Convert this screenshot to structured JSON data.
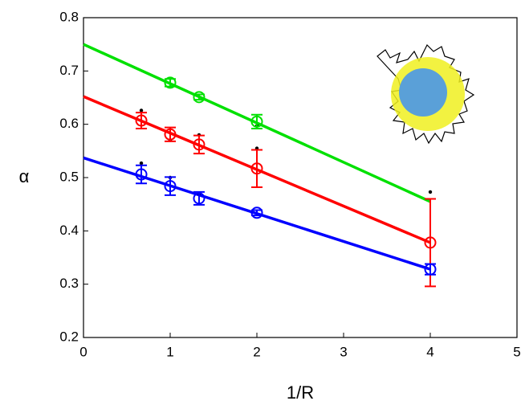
{
  "chart_data": {
    "type": "scatter",
    "xlabel": "1/R",
    "ylabel": "α",
    "xlim": [
      0,
      5
    ],
    "ylim": [
      0.2,
      0.8
    ],
    "xticks": [
      0,
      1,
      2,
      3,
      4,
      5
    ],
    "yticks": [
      0.2,
      0.3,
      0.4,
      0.5,
      0.6,
      0.7,
      0.8
    ],
    "series": [
      {
        "color": "#00e000",
        "x": [
          1,
          1.333,
          2
        ],
        "values": [
          0.678,
          0.651,
          0.605
        ],
        "errors": [
          0.007,
          0.005,
          0.013
        ]
      },
      {
        "color": "#ff0000",
        "x": [
          0.667,
          1,
          1.333,
          2,
          4
        ],
        "values": [
          0.607,
          0.581,
          0.562,
          0.517,
          0.378
        ],
        "errors": [
          0.015,
          0.013,
          0.017,
          0.035,
          0.082
        ]
      },
      {
        "color": "#0000ff",
        "x": [
          0.667,
          1,
          1.333,
          2,
          4
        ],
        "values": [
          0.506,
          0.484,
          0.461,
          0.434,
          0.328
        ],
        "errors": [
          0.017,
          0.017,
          0.012,
          0.005,
          0.01
        ]
      }
    ],
    "fits": [
      {
        "color": "#00e000",
        "x": [
          0,
          4
        ],
        "values": [
          0.75,
          0.455
        ]
      },
      {
        "color": "#ff0000",
        "x": [
          0,
          4
        ],
        "values": [
          0.652,
          0.378
        ]
      },
      {
        "color": "#0000ff",
        "x": [
          0,
          4
        ],
        "values": [
          0.537,
          0.328
        ]
      }
    ],
    "dots": {
      "color": "#000000",
      "x": [
        0.667,
        0.667,
        1,
        1,
        1.333,
        1.333,
        2,
        2,
        4
      ],
      "values": [
        0.626,
        0.527,
        0.57,
        0.5,
        0.58,
        0.47,
        0.555,
        0.597,
        0.473
      ]
    }
  }
}
